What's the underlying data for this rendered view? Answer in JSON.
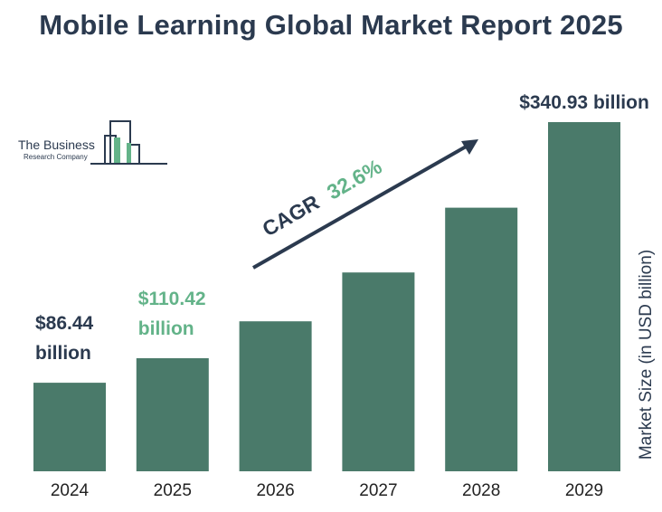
{
  "title": "Mobile Learning Global Market Report 2025",
  "logo": {
    "line1": "The Business",
    "line2": "Research Company"
  },
  "colors": {
    "bar": "#4a7a6a",
    "text_dark": "#2b3a4f",
    "accent_green": "#63b389"
  },
  "chart_data": {
    "type": "bar",
    "title": "Mobile Learning Global Market Report 2025",
    "categories": [
      "2024",
      "2025",
      "2026",
      "2027",
      "2028",
      "2029"
    ],
    "values": [
      86.44,
      110.42,
      146.4,
      194.1,
      257.4,
      340.93
    ],
    "ylabel": "Market Size (in USD billion)",
    "xlabel": "",
    "ylim": [
      0,
      340.93
    ],
    "grid": false,
    "data_labels": [
      {
        "category": "2024",
        "line1": "$86.44",
        "line2": "billion",
        "color": "dark"
      },
      {
        "category": "2025",
        "line1": "$110.42",
        "line2": "billion",
        "color": "green"
      },
      {
        "category": "2029",
        "line1": "$340.93 billion",
        "line2": "",
        "color": "dark"
      }
    ],
    "annotation": {
      "label": "CAGR",
      "value": "32.6%"
    }
  }
}
